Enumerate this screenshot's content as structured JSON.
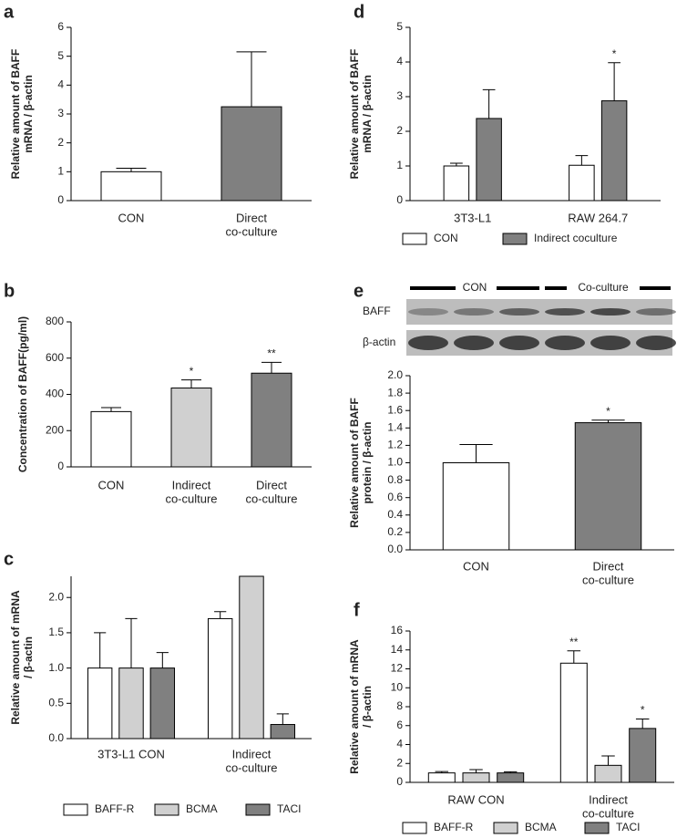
{
  "chart_data": [
    {
      "panel": "a",
      "type": "bar",
      "ylabel": [
        "Relative amount of BAFF",
        "mRNA / β-actin"
      ],
      "categories": [
        [
          "CON"
        ],
        [
          "Direct",
          "co-culture"
        ]
      ],
      "series": [
        {
          "values": [
            1.0,
            3.25
          ],
          "errors": [
            0.12,
            1.9
          ],
          "colors": [
            "#ffffff",
            "#808080"
          ]
        }
      ],
      "ylim": [
        0,
        6
      ],
      "yticks": [
        0,
        1,
        2,
        3,
        4,
        5,
        6
      ]
    },
    {
      "panel": "b",
      "type": "bar",
      "ylabel": [
        "Concentration of BAFF(pg/ml)"
      ],
      "categories": [
        [
          "CON"
        ],
        [
          "Indirect",
          "co-culture"
        ],
        [
          "Direct",
          "co-culture"
        ]
      ],
      "series": [
        {
          "values": [
            305,
            435,
            517
          ],
          "errors": [
            22,
            45,
            60
          ],
          "colors": [
            "#ffffff",
            "#d0d0d0",
            "#808080"
          ],
          "annotations": [
            null,
            "*",
            "**"
          ]
        }
      ],
      "ylim": [
        0,
        800
      ],
      "yticks": [
        0,
        200,
        400,
        600,
        800
      ]
    },
    {
      "panel": "c",
      "type": "bar",
      "ylabel": [
        "Relative amount of mRNA",
        "/ β-actin"
      ],
      "categories": [
        [
          "3T3-L1 CON"
        ],
        [
          "Indirect",
          "co-culture"
        ]
      ],
      "series": [
        {
          "name": "BAFF-R",
          "color": "#ffffff",
          "values": [
            1.0,
            1.7
          ],
          "errors": [
            0.5,
            0.1
          ]
        },
        {
          "name": "BCMA",
          "color": "#d0d0d0",
          "values": [
            1.0,
            2.3
          ],
          "errors": [
            0.7,
            null
          ]
        },
        {
          "name": "TACI",
          "color": "#808080",
          "values": [
            1.0,
            0.2
          ],
          "errors": [
            0.22,
            0.15
          ]
        }
      ],
      "ylim": [
        0,
        2.3
      ],
      "yticks": [
        {
          "value": 0,
          "label": "0.0"
        },
        0.5,
        {
          "value": 1,
          "label": "1.0"
        },
        1.5,
        {
          "value": 2,
          "label": "2.0"
        }
      ],
      "legend": "bottom"
    },
    {
      "panel": "d",
      "type": "bar",
      "ylabel": [
        "Relative amount of BAFF",
        "mRNA / β-actin"
      ],
      "categories": [
        [
          "3T3-L1"
        ],
        [
          "RAW 264.7"
        ]
      ],
      "series": [
        {
          "name": "CON",
          "color": "#ffffff",
          "values": [
            1.0,
            1.02
          ],
          "errors": [
            0.08,
            0.28
          ]
        },
        {
          "name": "Indirect coculture",
          "color": "#808080",
          "values": [
            2.37,
            2.88
          ],
          "errors": [
            0.83,
            1.1
          ],
          "annotations": [
            null,
            "*"
          ]
        }
      ],
      "ylim": [
        0,
        5
      ],
      "yticks": [
        0,
        1,
        2,
        3,
        4,
        5
      ],
      "legend": "bottom"
    },
    {
      "panel": "e",
      "type": "bar",
      "ylabel": [
        "Relative amount of BAFF",
        "protein / β-actin"
      ],
      "blot_groups": [
        "CON",
        "Co-culture"
      ],
      "blot_rows": [
        "BAFF",
        "β-actin"
      ],
      "categories": [
        [
          "CON"
        ],
        [
          "Direct",
          "co-culture"
        ]
      ],
      "series": [
        {
          "values": [
            1.0,
            1.46
          ],
          "errors": [
            0.21,
            0.03
          ],
          "colors": [
            "#ffffff",
            "#808080"
          ],
          "annotations": [
            null,
            "*"
          ]
        }
      ],
      "ylim": [
        0,
        2
      ],
      "yticks": [
        {
          "value": 0,
          "label": "0.0"
        },
        0.2,
        0.4,
        0.6,
        0.8,
        {
          "value": 1,
          "label": "1.0"
        },
        1.2,
        1.4,
        1.6,
        1.8,
        {
          "value": 2,
          "label": "2.0"
        }
      ]
    },
    {
      "panel": "f",
      "type": "bar",
      "ylabel": [
        "Relative amount of mRNA",
        "/ β-actin"
      ],
      "categories": [
        [
          "RAW CON"
        ],
        [
          "Indirect",
          "co-culture"
        ]
      ],
      "series": [
        {
          "name": "BAFF-R",
          "color": "#ffffff",
          "values": [
            1.0,
            12.6
          ],
          "errors": [
            0.15,
            1.3
          ],
          "annotations": [
            null,
            "**"
          ]
        },
        {
          "name": "BCMA",
          "color": "#d0d0d0",
          "values": [
            1.0,
            1.8
          ],
          "errors": [
            0.35,
            1.0
          ]
        },
        {
          "name": "TACI",
          "color": "#808080",
          "values": [
            1.0,
            5.7
          ],
          "errors": [
            0.12,
            1.0
          ],
          "annotations": [
            null,
            "*"
          ]
        }
      ],
      "ylim": [
        0,
        16
      ],
      "yticks": [
        0,
        2,
        4,
        6,
        8,
        10,
        12,
        14,
        16
      ],
      "legend": "bottom"
    }
  ]
}
